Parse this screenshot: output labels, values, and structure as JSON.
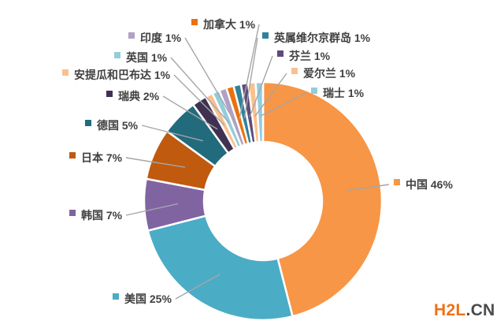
{
  "chart_data": {
    "type": "pie",
    "subtype": "donut",
    "title": "",
    "direction": "clockwise",
    "start_angle_deg": 0,
    "donut_hole_ratio": 0.5,
    "unit": "%",
    "categories": [
      "中国",
      "美国",
      "韩国",
      "日本",
      "德国",
      "瑞典",
      "安提瓜和巴布达",
      "英国",
      "印度",
      "加拿大",
      "英属维尔京群岛",
      "芬兰",
      "爱尔兰",
      "瑞士"
    ],
    "values": [
      46,
      25,
      7,
      7,
      5,
      2,
      1,
      1,
      1,
      1,
      1,
      1,
      1,
      1
    ],
    "colors": [
      "#F79646",
      "#4BACC6",
      "#8064A2",
      "#BF5A0F",
      "#226B7D",
      "#403152",
      "#FAC090",
      "#92CDDC",
      "#B1A0C7",
      "#E8720E",
      "#2F829B",
      "#5F4A78",
      "#FAC090",
      "#92CDDC"
    ],
    "label_template": "{category} {value}%",
    "label_text_color": "#404040",
    "leader_line_color": "#A6A6A6",
    "slice_gap_color": "#FFFFFF",
    "background": "#FFFFFF",
    "legend_position": "callout-labels"
  },
  "watermark": {
    "brand": "H2L",
    "suffix": ".CN",
    "brand_color": "#F0701A",
    "suffix_color": "#4A4A4A"
  }
}
